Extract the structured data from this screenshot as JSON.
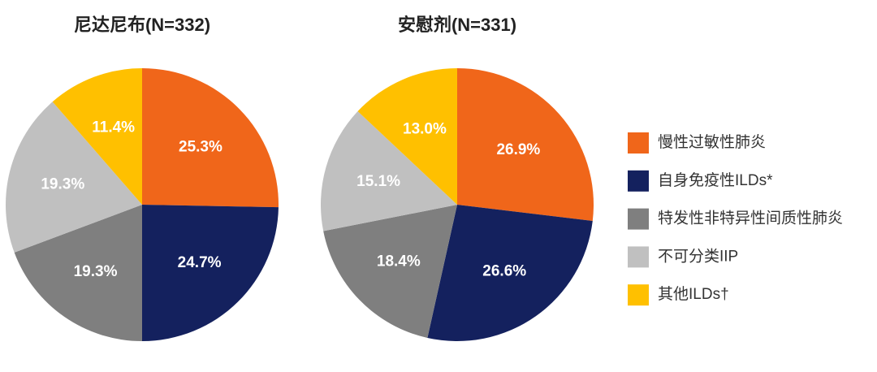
{
  "chart_data": [
    {
      "type": "pie",
      "title": "尼达尼布(N=332)",
      "values": [
        25.3,
        24.7,
        19.3,
        19.3,
        11.4
      ],
      "value_labels": [
        "25.3%",
        "24.7%",
        "19.3%",
        "19.3%",
        "11.4%"
      ]
    },
    {
      "type": "pie",
      "title": "安慰剂(N=331)",
      "values": [
        26.9,
        26.6,
        18.4,
        15.1,
        13.0
      ],
      "value_labels": [
        "26.9%",
        "26.6%",
        "18.4%",
        "15.1%",
        "13.0%"
      ]
    }
  ],
  "legend": {
    "categories": [
      "慢性过敏性肺炎",
      "自身免疫性ILDs*",
      "特发性非特异性间质性肺炎",
      "不可分类IIP",
      "其他ILDs†"
    ],
    "colors": [
      "#f0661a",
      "#14215e",
      "#7f7f7f",
      "#c0c0c0",
      "#ffc000"
    ]
  }
}
